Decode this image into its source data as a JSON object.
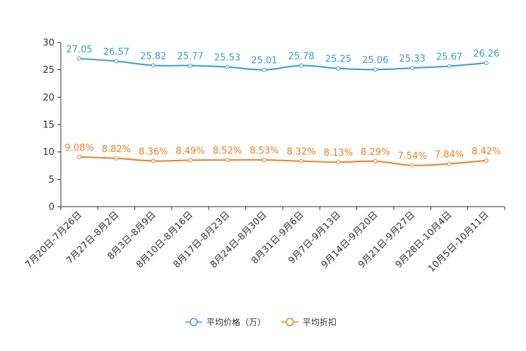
{
  "chart_data": {
    "type": "line",
    "title": "",
    "xlabel": "",
    "ylabel": "",
    "ylim": [
      0,
      30
    ],
    "yticks": [
      0,
      5,
      10,
      15,
      20,
      25,
      30
    ],
    "grid": false,
    "legend_position": "bottom-center",
    "categories": [
      "7月20日-7月26日",
      "7月27日-8月2日",
      "8月3日-8月9日",
      "8月10日-8月16日",
      "8月17日-8月23日",
      "8月24日-8月30日",
      "8月31日-9月6日",
      "9月7日-9月13日",
      "9月14日-9月20日",
      "9月21日-9月27日",
      "9月28日-10月4日",
      "10月5日-10月11日"
    ],
    "series": [
      {
        "name": "平均价格（万）",
        "color": "#3a9bd0",
        "values": [
          27.05,
          26.57,
          25.82,
          25.77,
          25.53,
          25.01,
          25.78,
          25.25,
          25.06,
          25.33,
          25.67,
          26.26
        ],
        "labels": [
          "27.05",
          "26.57",
          "25.82",
          "25.77",
          "25.53",
          "25.01",
          "25.78",
          "25.25",
          "25.06",
          "25.33",
          "25.67",
          "26.26"
        ]
      },
      {
        "name": "平均折扣",
        "color": "#f07e1e",
        "values": [
          9.08,
          8.82,
          8.36,
          8.49,
          8.52,
          8.53,
          8.32,
          8.13,
          8.29,
          7.54,
          7.84,
          8.42
        ],
        "labels": [
          "9.08%",
          "8.82%",
          "8.36%",
          "8.49%",
          "8.52%",
          "8.53%",
          "8.32%",
          "8.13%",
          "8.29%",
          "7.54%",
          "7.84%",
          "8.42%"
        ]
      }
    ]
  }
}
